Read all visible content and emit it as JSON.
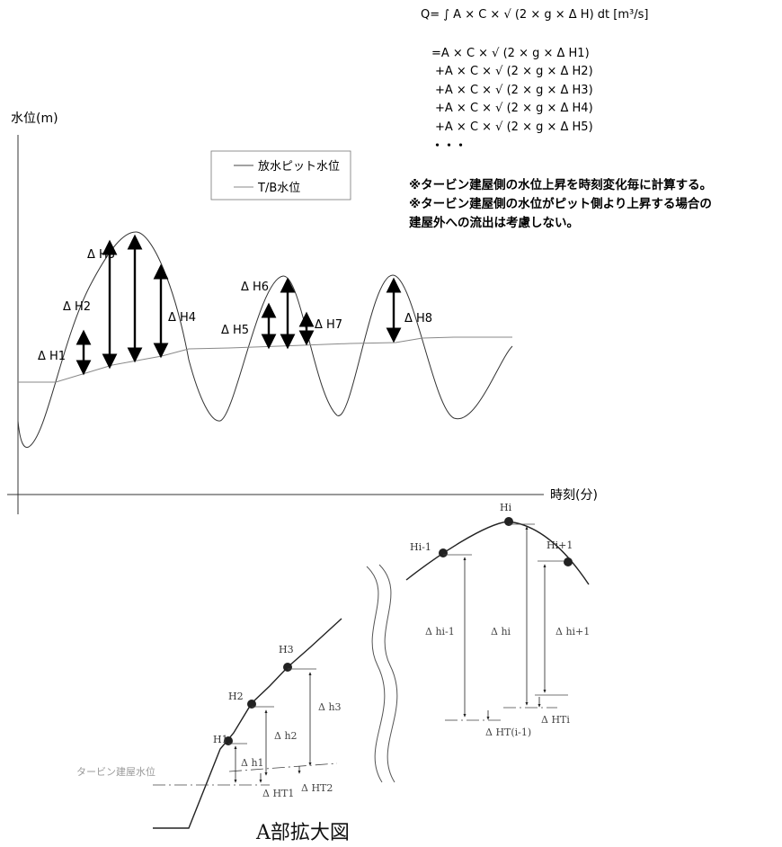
{
  "formula": {
    "lines": [
      "Q= ∫ A × C × √ (2 × g × Δ H) dt   [m³/s]",
      "=A × C × √ (2 × g × Δ H1)",
      "+A × C × √ (2 × g × Δ H2)",
      "+A × C × √ (2 × g × Δ H3)",
      "+A × C × √ (2 × g × Δ H4)",
      "+A × C × √ (2 × g × Δ H5)",
      "・・・"
    ]
  },
  "notes": [
    "※タービン建屋側の水位上昇を時刻変化毎に計算する。",
    "※タービン建屋側の水位がピット側より上昇する場合の",
    "建屋外への流出は考慮しない。"
  ],
  "axes": {
    "y_label": "水位(m)",
    "x_label": "時刻(分)"
  },
  "legend": {
    "items": [
      {
        "label": "放水ピット水位"
      },
      {
        "label": "T/B水位"
      }
    ]
  },
  "delta_labels": [
    "Δ H1",
    "Δ H2",
    "Δ H3",
    "Δ H4",
    "Δ H5",
    "Δ H6",
    "Δ H7",
    "Δ H8"
  ],
  "detail_left": {
    "points": [
      "H1",
      "H2",
      "H3"
    ],
    "deltas": [
      "Δ h1",
      "Δ h2",
      "Δ h3"
    ],
    "tb_label": "タービン建屋水位",
    "tb_deltas": [
      "Δ HT1",
      "Δ HT2"
    ]
  },
  "detail_right": {
    "points": [
      "Hi-1",
      "Hi",
      "Hi+1"
    ],
    "deltas": [
      "Δ hi-1",
      "Δ hi",
      "Δ hi+1"
    ],
    "tb_deltas": [
      "Δ HTi",
      "Δ HT(i-1)"
    ]
  },
  "caption": "A部拡大図"
}
